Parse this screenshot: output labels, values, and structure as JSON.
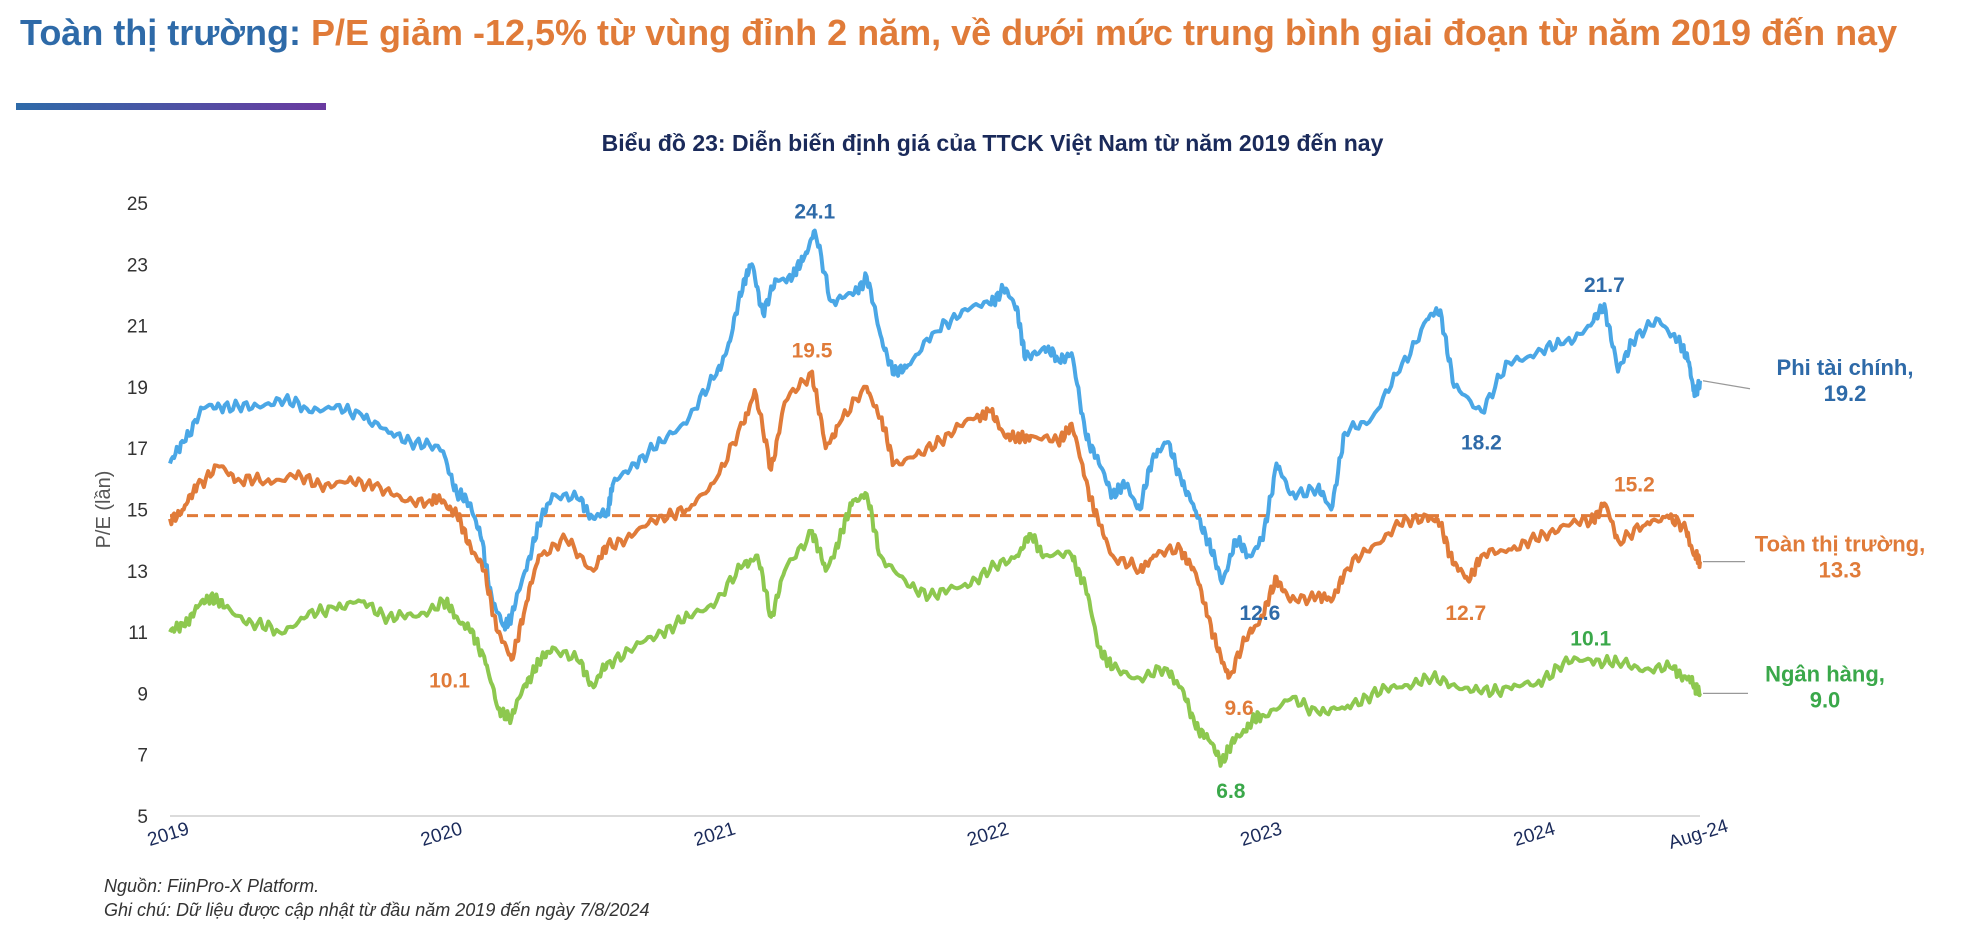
{
  "header": {
    "lead": "Toàn thị trường:",
    "rest": " P/E giảm -12,5% từ vùng đỉnh 2 năm, về dưới mức trung bình giai đoạn từ năm 2019 đến nay"
  },
  "footer": {
    "source": "Nguồn: FiinPro-X Platform.",
    "note": "Ghi chú: Dữ liệu được cập nhật từ đầu năm 2019 đến ngày 7/8/2024"
  },
  "chart_data": {
    "type": "line",
    "title": "Biểu đồ 23: Diễn biến định giá của TTCK Việt Nam từ năm 2019 đến nay",
    "ylabel": "P/E (lần)",
    "xlabel": "",
    "ylim": [
      5,
      25
    ],
    "yticks": [
      5,
      7,
      9,
      11,
      13,
      15,
      17,
      19,
      21,
      23,
      25
    ],
    "xlim": [
      2019.0,
      2024.6
    ],
    "xticks": [
      {
        "x": 2019.0,
        "label": "2019"
      },
      {
        "x": 2020.0,
        "label": "2020"
      },
      {
        "x": 2021.0,
        "label": "2021"
      },
      {
        "x": 2022.0,
        "label": "2022"
      },
      {
        "x": 2023.0,
        "label": "2023"
      },
      {
        "x": 2024.0,
        "label": "2024"
      },
      {
        "x": 2024.6,
        "label": "Aug-24"
      }
    ],
    "average_line": {
      "series": "Toàn thị trường",
      "value": 14.8,
      "color": "#e07b39"
    },
    "series": [
      {
        "name": "Phi tài chính",
        "color": "#4aa7e6",
        "label_color": "#2e6aa8",
        "end_label": [
          "Phi tài chính,",
          "19.2"
        ],
        "points": [
          [
            2019.0,
            16.5
          ],
          [
            2019.05,
            17.2
          ],
          [
            2019.12,
            18.3
          ],
          [
            2019.2,
            18.4
          ],
          [
            2019.3,
            18.3
          ],
          [
            2019.4,
            18.6
          ],
          [
            2019.5,
            18.3
          ],
          [
            2019.6,
            18.3
          ],
          [
            2019.7,
            18.1
          ],
          [
            2019.8,
            17.5
          ],
          [
            2019.9,
            17.2
          ],
          [
            2020.0,
            16.9
          ],
          [
            2020.05,
            15.5
          ],
          [
            2020.1,
            15.2
          ],
          [
            2020.14,
            14.0
          ],
          [
            2020.18,
            12.0
          ],
          [
            2020.22,
            11.2
          ],
          [
            2020.25,
            11.5
          ],
          [
            2020.3,
            13.0
          ],
          [
            2020.35,
            14.5
          ],
          [
            2020.4,
            15.5
          ],
          [
            2020.5,
            15.3
          ],
          [
            2020.55,
            14.7
          ],
          [
            2020.6,
            14.9
          ],
          [
            2020.62,
            15.8
          ],
          [
            2020.7,
            16.5
          ],
          [
            2020.8,
            17.2
          ],
          [
            2020.9,
            18.0
          ],
          [
            2021.0,
            19.4
          ],
          [
            2021.05,
            20.5
          ],
          [
            2021.1,
            22.5
          ],
          [
            2021.13,
            23.0
          ],
          [
            2021.17,
            21.4
          ],
          [
            2021.22,
            22.5
          ],
          [
            2021.28,
            22.6
          ],
          [
            2021.32,
            23.2
          ],
          [
            2021.36,
            24.1
          ],
          [
            2021.42,
            21.8
          ],
          [
            2021.5,
            22.0
          ],
          [
            2021.55,
            22.6
          ],
          [
            2021.6,
            20.7
          ],
          [
            2021.65,
            19.4
          ],
          [
            2021.7,
            19.7
          ],
          [
            2021.8,
            20.8
          ],
          [
            2021.9,
            21.5
          ],
          [
            2022.0,
            21.7
          ],
          [
            2022.05,
            22.2
          ],
          [
            2022.1,
            21.6
          ],
          [
            2022.13,
            19.9
          ],
          [
            2022.2,
            20.3
          ],
          [
            2022.25,
            19.9
          ],
          [
            2022.3,
            20.1
          ],
          [
            2022.35,
            17.5
          ],
          [
            2022.4,
            16.5
          ],
          [
            2022.45,
            15.5
          ],
          [
            2022.5,
            15.8
          ],
          [
            2022.55,
            15.0
          ],
          [
            2022.6,
            16.8
          ],
          [
            2022.65,
            17.2
          ],
          [
            2022.7,
            16.0
          ],
          [
            2022.75,
            15.0
          ],
          [
            2022.8,
            14.0
          ],
          [
            2022.85,
            12.6
          ],
          [
            2022.9,
            14.0
          ],
          [
            2022.95,
            13.5
          ],
          [
            2023.0,
            14.0
          ],
          [
            2023.05,
            16.5
          ],
          [
            2023.1,
            15.5
          ],
          [
            2023.2,
            15.7
          ],
          [
            2023.25,
            15.0
          ],
          [
            2023.3,
            17.5
          ],
          [
            2023.4,
            18.0
          ],
          [
            2023.5,
            19.5
          ],
          [
            2023.6,
            21.2
          ],
          [
            2023.65,
            21.5
          ],
          [
            2023.7,
            19.0
          ],
          [
            2023.8,
            18.2
          ],
          [
            2023.9,
            19.8
          ],
          [
            2024.0,
            20.1
          ],
          [
            2024.1,
            20.4
          ],
          [
            2024.2,
            21.0
          ],
          [
            2024.25,
            21.7
          ],
          [
            2024.3,
            19.5
          ],
          [
            2024.35,
            20.5
          ],
          [
            2024.45,
            21.2
          ],
          [
            2024.52,
            20.5
          ],
          [
            2024.56,
            19.8
          ],
          [
            2024.58,
            18.7
          ],
          [
            2024.6,
            19.2
          ]
        ]
      },
      {
        "name": "Toàn thị trường",
        "color": "#e07b39",
        "label_color": "#e07b39",
        "end_label": [
          "Toàn thị trường,",
          "13.3"
        ],
        "points": [
          [
            2019.0,
            14.7
          ],
          [
            2019.05,
            15.0
          ],
          [
            2019.1,
            15.8
          ],
          [
            2019.18,
            16.4
          ],
          [
            2019.25,
            16.0
          ],
          [
            2019.35,
            15.9
          ],
          [
            2019.45,
            16.1
          ],
          [
            2019.55,
            15.8
          ],
          [
            2019.65,
            15.9
          ],
          [
            2019.75,
            15.8
          ],
          [
            2019.85,
            15.3
          ],
          [
            2019.95,
            15.3
          ],
          [
            2020.0,
            15.3
          ],
          [
            2020.05,
            14.8
          ],
          [
            2020.1,
            13.8
          ],
          [
            2020.15,
            13.0
          ],
          [
            2020.2,
            11.0
          ],
          [
            2020.25,
            10.1
          ],
          [
            2020.3,
            11.8
          ],
          [
            2020.35,
            13.5
          ],
          [
            2020.45,
            14.0
          ],
          [
            2020.55,
            13.0
          ],
          [
            2020.6,
            13.8
          ],
          [
            2020.7,
            14.2
          ],
          [
            2020.8,
            14.8
          ],
          [
            2020.9,
            15.0
          ],
          [
            2021.0,
            16.0
          ],
          [
            2021.1,
            17.8
          ],
          [
            2021.14,
            18.9
          ],
          [
            2021.2,
            16.3
          ],
          [
            2021.25,
            18.5
          ],
          [
            2021.35,
            19.5
          ],
          [
            2021.4,
            17.0
          ],
          [
            2021.45,
            17.8
          ],
          [
            2021.55,
            19.0
          ],
          [
            2021.6,
            18.0
          ],
          [
            2021.65,
            16.5
          ],
          [
            2021.75,
            16.8
          ],
          [
            2021.85,
            17.5
          ],
          [
            2021.95,
            18.0
          ],
          [
            2022.0,
            18.2
          ],
          [
            2022.05,
            17.5
          ],
          [
            2022.1,
            17.3
          ],
          [
            2022.15,
            17.4
          ],
          [
            2022.25,
            17.2
          ],
          [
            2022.3,
            17.8
          ],
          [
            2022.35,
            16.0
          ],
          [
            2022.4,
            14.5
          ],
          [
            2022.45,
            13.5
          ],
          [
            2022.55,
            13.0
          ],
          [
            2022.6,
            13.5
          ],
          [
            2022.7,
            13.7
          ],
          [
            2022.75,
            13.0
          ],
          [
            2022.8,
            11.5
          ],
          [
            2022.85,
            10.0
          ],
          [
            2022.88,
            9.6
          ],
          [
            2022.95,
            11.0
          ],
          [
            2023.0,
            11.5
          ],
          [
            2023.05,
            12.8
          ],
          [
            2023.1,
            12.0
          ],
          [
            2023.2,
            12.2
          ],
          [
            2023.25,
            12.0
          ],
          [
            2023.3,
            13.0
          ],
          [
            2023.4,
            13.8
          ],
          [
            2023.5,
            14.5
          ],
          [
            2023.6,
            14.8
          ],
          [
            2023.65,
            14.5
          ],
          [
            2023.7,
            13.2
          ],
          [
            2023.75,
            12.7
          ],
          [
            2023.8,
            13.5
          ],
          [
            2023.9,
            13.7
          ],
          [
            2024.0,
            14.0
          ],
          [
            2024.1,
            14.5
          ],
          [
            2024.2,
            14.6
          ],
          [
            2024.25,
            15.2
          ],
          [
            2024.3,
            14.0
          ],
          [
            2024.4,
            14.5
          ],
          [
            2024.48,
            14.8
          ],
          [
            2024.55,
            14.3
          ],
          [
            2024.58,
            13.5
          ],
          [
            2024.6,
            13.3
          ]
        ]
      },
      {
        "name": "Ngân hàng",
        "color": "#8dc84f",
        "label_color": "#3aa84a",
        "end_label": [
          "Ngân hàng,",
          "9.0"
        ],
        "points": [
          [
            2019.0,
            11.0
          ],
          [
            2019.05,
            11.2
          ],
          [
            2019.1,
            11.8
          ],
          [
            2019.15,
            12.2
          ],
          [
            2019.2,
            11.8
          ],
          [
            2019.3,
            11.3
          ],
          [
            2019.4,
            11.0
          ],
          [
            2019.5,
            11.5
          ],
          [
            2019.6,
            11.8
          ],
          [
            2019.7,
            12.0
          ],
          [
            2019.8,
            11.5
          ],
          [
            2019.9,
            11.5
          ],
          [
            2020.0,
            12.0
          ],
          [
            2020.05,
            11.5
          ],
          [
            2020.1,
            11.0
          ],
          [
            2020.15,
            10.2
          ],
          [
            2020.2,
            8.5
          ],
          [
            2020.25,
            8.2
          ],
          [
            2020.3,
            9.3
          ],
          [
            2020.35,
            10.0
          ],
          [
            2020.4,
            10.5
          ],
          [
            2020.5,
            10.0
          ],
          [
            2020.55,
            9.2
          ],
          [
            2020.6,
            10.0
          ],
          [
            2020.7,
            10.5
          ],
          [
            2020.8,
            11.0
          ],
          [
            2020.9,
            11.5
          ],
          [
            2021.0,
            12.0
          ],
          [
            2021.1,
            13.2
          ],
          [
            2021.15,
            13.5
          ],
          [
            2021.2,
            11.5
          ],
          [
            2021.25,
            13.0
          ],
          [
            2021.35,
            14.3
          ],
          [
            2021.4,
            13.0
          ],
          [
            2021.45,
            14.0
          ],
          [
            2021.5,
            15.3
          ],
          [
            2021.55,
            15.5
          ],
          [
            2021.6,
            13.5
          ],
          [
            2021.7,
            12.5
          ],
          [
            2021.8,
            12.2
          ],
          [
            2021.9,
            12.5
          ],
          [
            2022.0,
            13.0
          ],
          [
            2022.1,
            13.5
          ],
          [
            2022.15,
            14.2
          ],
          [
            2022.2,
            13.5
          ],
          [
            2022.3,
            13.5
          ],
          [
            2022.35,
            12.5
          ],
          [
            2022.4,
            10.5
          ],
          [
            2022.45,
            9.8
          ],
          [
            2022.55,
            9.5
          ],
          [
            2022.65,
            9.8
          ],
          [
            2022.7,
            9.2
          ],
          [
            2022.75,
            8.0
          ],
          [
            2022.8,
            7.5
          ],
          [
            2022.85,
            6.8
          ],
          [
            2022.9,
            7.5
          ],
          [
            2022.95,
            8.0
          ],
          [
            2023.0,
            8.3
          ],
          [
            2023.1,
            8.8
          ],
          [
            2023.2,
            8.4
          ],
          [
            2023.3,
            8.5
          ],
          [
            2023.4,
            9.0
          ],
          [
            2023.5,
            9.2
          ],
          [
            2023.6,
            9.5
          ],
          [
            2023.7,
            9.3
          ],
          [
            2023.8,
            9.0
          ],
          [
            2023.9,
            9.2
          ],
          [
            2024.0,
            9.3
          ],
          [
            2024.1,
            10.0
          ],
          [
            2024.2,
            10.1
          ],
          [
            2024.3,
            10.0
          ],
          [
            2024.4,
            9.8
          ],
          [
            2024.5,
            9.8
          ],
          [
            2024.55,
            9.5
          ],
          [
            2024.58,
            9.3
          ],
          [
            2024.6,
            9.0
          ]
        ]
      }
    ],
    "annotations": [
      {
        "text": "24.1",
        "x": 2021.36,
        "y": 24.1,
        "series": "Phi tài chính"
      },
      {
        "text": "21.7",
        "x": 2024.25,
        "y": 21.7,
        "series": "Phi tài chính"
      },
      {
        "text": "18.2",
        "x": 2023.8,
        "y": 18.2,
        "series": "Phi tài chính"
      },
      {
        "text": "12.6",
        "x": 2022.85,
        "y": 12.6,
        "series": "Phi tài chính"
      },
      {
        "text": "19.5",
        "x": 2021.35,
        "y": 19.5,
        "series": "Toàn thị trường"
      },
      {
        "text": "15.2",
        "x": 2024.25,
        "y": 15.2,
        "series": "Toàn thị trường"
      },
      {
        "text": "12.7",
        "x": 2023.75,
        "y": 12.7,
        "series": "Toàn thị trường"
      },
      {
        "text": "10.1",
        "x": 2020.25,
        "y": 10.1,
        "series": "Toàn thị trường"
      },
      {
        "text": "9.6",
        "x": 2022.88,
        "y": 9.6,
        "series": "Toàn thị trường"
      },
      {
        "text": "10.1",
        "x": 2024.2,
        "y": 10.1,
        "series": "Ngân hàng"
      },
      {
        "text": "6.8",
        "x": 2022.85,
        "y": 6.8,
        "series": "Ngân hàng"
      }
    ]
  }
}
